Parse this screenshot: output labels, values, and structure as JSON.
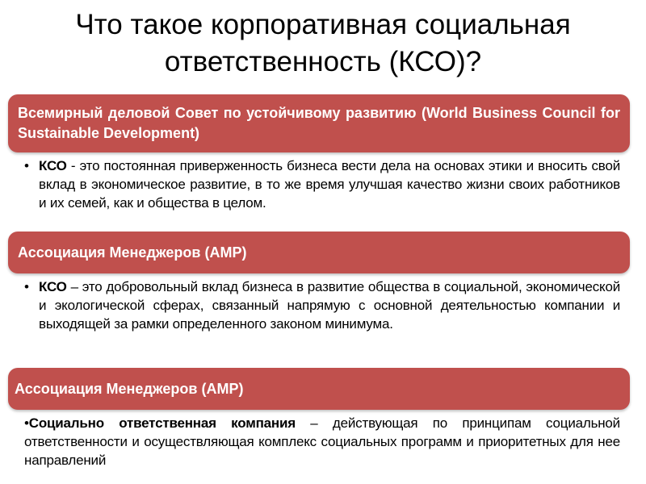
{
  "title": "Что такое корпоративная социальная ответственность (КСО)?",
  "accent_color": "#c0504d",
  "sections": [
    {
      "header": "Всемирный деловой Совет по устойчивому развитию (World Business Council for Sustainable Development)",
      "bullet": "•",
      "term": "КСО",
      "definition": " - это постоянная приверженность бизнеса вести дела на основах этики и вносить свой вклад в экономическое развитие, в то же время улучшая качество жизни своих работников и их семей, как и общества в целом."
    },
    {
      "header": "Ассоциация Менеджеров (АМР)",
      "bullet": "•",
      "term": "КСО",
      "definition": " – это добровольный вклад бизнеса в развитие общества в социальной, экономической и экологической сферах, связанный напрямую с основной деятельностью компании и выходящей за рамки определенного законом минимума."
    },
    {
      "header": "Ассоциация Менеджеров (АМР)",
      "bullet": "•",
      "term": "Социально ответственная компания",
      "definition": " – действующая по принципам социальной ответственности и осуществляющая комплекс социальных программ и приоритетных для нее направлений"
    }
  ]
}
